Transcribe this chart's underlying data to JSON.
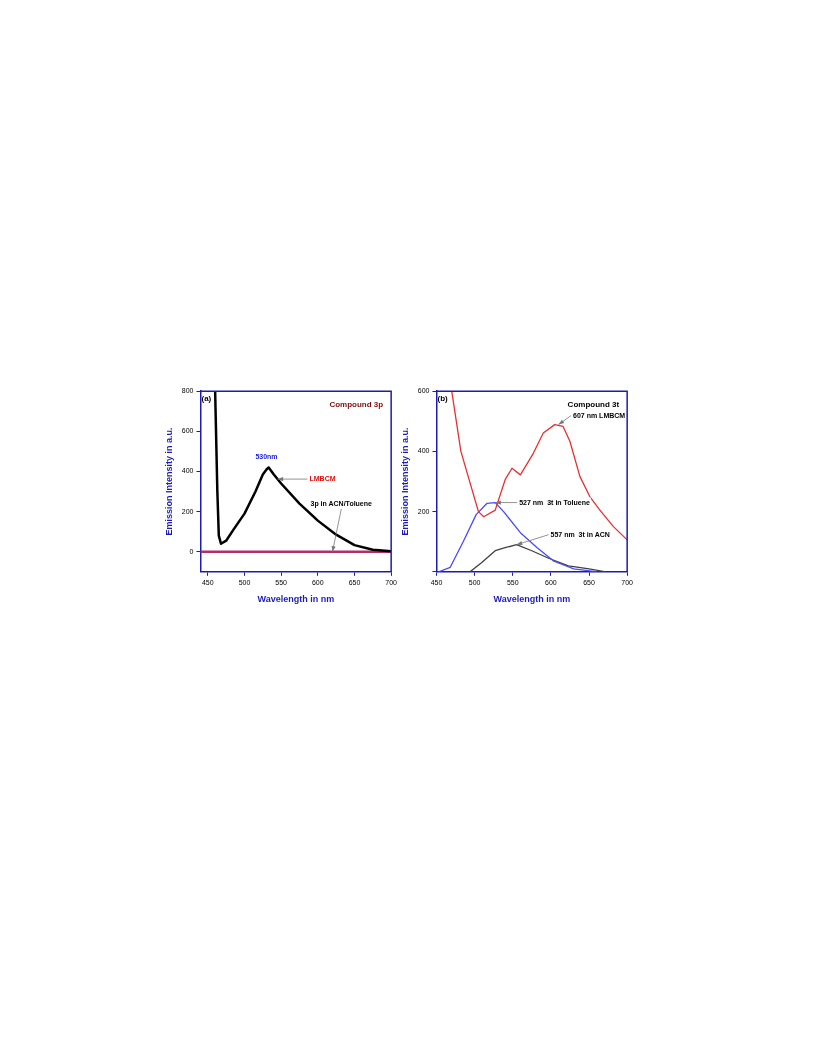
{
  "chart_data": [
    {
      "type": "line",
      "xlabel": "Wavelength in nm",
      "ylabel": "Emission Intensity in a.u.",
      "xlim": [
        440,
        700
      ],
      "xticks": [
        450,
        500,
        550,
        600,
        650,
        700
      ],
      "ylim": [
        -100,
        800
      ],
      "yticks": [
        0,
        200,
        400,
        600,
        800
      ],
      "grid": false,
      "legend": false,
      "marker": "none",
      "annotations": [
        "(a)",
        "Compound 3p",
        {
          "text": "530nm",
          "x": 530,
          "y": 410
        },
        {
          "text": "LMBCM",
          "x": 545,
          "y": 362
        },
        {
          "text": "3p in ACN/Toluene",
          "x": 620,
          "y": 0
        }
      ],
      "series": [
        {
          "color": "#000000",
          "x": [
            460,
            463,
            465,
            468,
            475,
            485,
            500,
            515,
            525,
            530,
            533,
            540,
            550,
            575,
            600,
            625,
            650,
            675,
            700
          ],
          "values": [
            800,
            300,
            80,
            40,
            55,
            110,
            190,
            300,
            385,
            410,
            420,
            385,
            340,
            240,
            155,
            85,
            33,
            10,
            3
          ]
        },
        {
          "color": "#b0306a",
          "x": [
            440,
            700
          ],
          "values": [
            0,
            0
          ]
        }
      ]
    },
    {
      "type": "line",
      "xlabel": "Wavelength in nm",
      "ylabel": "Emission Intensity in a.u.",
      "xlim": [
        450,
        700
      ],
      "xticks": [
        450,
        500,
        550,
        600,
        650,
        700
      ],
      "ylim": [
        0,
        600
      ],
      "yticks": [
        {
          "value": 0,
          "label": null
        },
        200,
        400,
        600
      ],
      "grid": false,
      "legend": false,
      "marker": "none",
      "annotations": [
        "(b)",
        "Compound 3t",
        {
          "text": "607 nm LMBCM",
          "x": 610,
          "y": 489
        },
        {
          "text": "527 nm  3t in Toluene",
          "x": 527,
          "y": 230
        },
        {
          "text": "557 nm  3t in ACN",
          "x": 555,
          "y": 90
        }
      ],
      "series": [
        {
          "color": "#e83030",
          "x": [
            470,
            482,
            505,
            512,
            527,
            540,
            549,
            560,
            576,
            590,
            605,
            616,
            625,
            638,
            651,
            664,
            682,
            700
          ],
          "values": [
            600,
            400,
            200,
            183,
            205,
            306,
            344,
            322,
            389,
            461,
            489,
            483,
            433,
            317,
            250,
            206,
            150,
            106
          ]
        },
        {
          "color": "#4a4aff",
          "x": [
            453,
            468,
            485,
            502,
            516,
            527,
            538,
            560,
            582,
            604,
            630,
            661
          ],
          "values": [
            0,
            15,
            100,
            190,
            227,
            230,
            200,
            130,
            80,
            35,
            10,
            0
          ]
        },
        {
          "color": "#404040",
          "x": [
            494,
            509,
            527,
            540,
            555,
            575,
            597,
            623,
            650,
            672
          ],
          "values": [
            0,
            30,
            70,
            80,
            90,
            70,
            45,
            20,
            10,
            0
          ]
        }
      ]
    }
  ]
}
